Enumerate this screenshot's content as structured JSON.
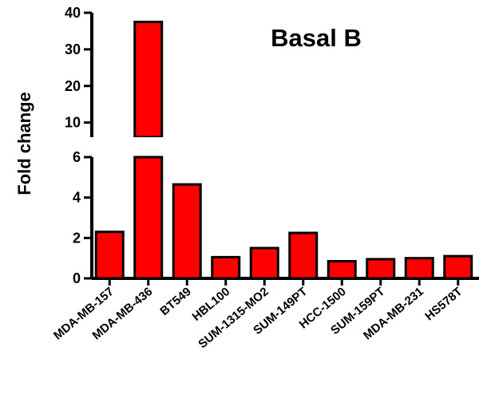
{
  "chart_data": {
    "type": "bar",
    "title": "Basal B",
    "xlabel": "",
    "ylabel": "Fold change",
    "categories": [
      "MDA-MB-157",
      "MDA-MB-436",
      "BT549",
      "HBL100",
      "SUM-1315-MO2",
      "SUM-149PT",
      "HCC-1500",
      "SUM-159PT",
      "MDA-MB-231",
      "HS578T"
    ],
    "values": [
      2.3,
      37.5,
      4.65,
      1.05,
      1.5,
      2.25,
      0.85,
      0.95,
      1.0,
      1.1
    ],
    "y_axis_break": true,
    "ylim_lower": [
      0,
      6
    ],
    "ylim_upper": [
      6,
      40
    ],
    "yticks_lower": [
      "0",
      "2",
      "4",
      "6"
    ],
    "yticks_upper": [
      "10",
      "20",
      "30",
      "40"
    ],
    "bar_color": "#ff0000",
    "grid": false,
    "legend": "none"
  }
}
